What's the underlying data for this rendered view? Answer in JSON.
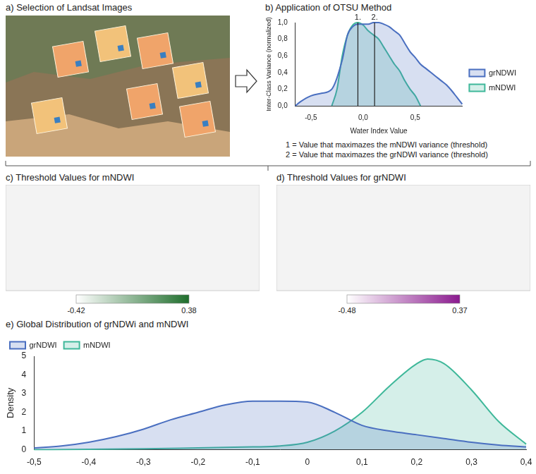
{
  "panels": {
    "a": {
      "title": "a) Selection of Landsat Images"
    },
    "c": {
      "title": "c) Threshold Values for mNDWI",
      "colorbar": {
        "range": [
          -0.42,
          0.38
        ],
        "ticks": [
          -0.42,
          0.38
        ],
        "colors": [
          "#ffffff",
          "#1f6e2c"
        ]
      }
    },
    "d": {
      "title": "d) Threshold Values for grNDWI",
      "colorbar": {
        "range": [
          -0.48,
          0.37
        ],
        "ticks": [
          -0.48,
          0.37
        ],
        "colors": [
          "#ffffff",
          "#8b1a8f"
        ]
      }
    }
  },
  "chart_data": [
    {
      "type": "line",
      "title": "b) Application of OTSU Method",
      "x_label": "Water Index Value",
      "y_label": "Inter-Class Variance (normalized)",
      "xlim": [
        -0.65,
        0.95
      ],
      "xticks": [
        {
          "value": -0.5,
          "label": "-0,5"
        },
        {
          "value": 0,
          "label": "0,0"
        },
        {
          "value": 0.5,
          "label": "0,5"
        }
      ],
      "ylim": [
        0,
        1
      ],
      "yticks": [
        {
          "value": 0,
          "label": "0,0"
        },
        {
          "value": 0.2,
          "label": "0,2"
        },
        {
          "value": 0.4,
          "label": "0,4"
        },
        {
          "value": 0.6,
          "label": "0,6"
        },
        {
          "value": 0.8,
          "label": "0,8"
        },
        {
          "value": 1,
          "label": "1,0"
        }
      ],
      "grid": false,
      "legend": "right",
      "series": [
        {
          "name": "grNDWI",
          "color": "#4a6fc0",
          "x": [
            -0.65,
            -0.6,
            -0.5,
            -0.4,
            -0.3,
            -0.2,
            -0.15,
            -0.1,
            -0.05,
            0,
            0.05,
            0.1,
            0.15,
            0.2,
            0.25,
            0.3,
            0.35,
            0.4,
            0.45,
            0.5,
            0.55,
            0.6,
            0.65,
            0.7,
            0.75,
            0.8,
            0.85,
            0.9,
            0.95
          ],
          "values": [
            0.0,
            0.05,
            0.12,
            0.15,
            0.2,
            0.55,
            0.85,
            0.95,
            0.98,
            0.98,
            0.98,
            1.0,
            1.0,
            0.98,
            0.95,
            0.9,
            0.85,
            0.75,
            0.65,
            0.58,
            0.5,
            0.45,
            0.4,
            0.35,
            0.3,
            0.25,
            0.18,
            0.1,
            0.02
          ]
        },
        {
          "name": "mNDWI",
          "color": "#3fb89a",
          "x": [
            -0.3,
            -0.25,
            -0.2,
            -0.15,
            -0.1,
            -0.05,
            0,
            0.05,
            0.1,
            0.15,
            0.2,
            0.25,
            0.3,
            0.35,
            0.4,
            0.45,
            0.5,
            0.55
          ],
          "values": [
            0.0,
            0.2,
            0.6,
            0.85,
            0.97,
            1.0,
            0.97,
            0.9,
            0.85,
            0.8,
            0.7,
            0.6,
            0.5,
            0.42,
            0.3,
            0.2,
            0.12,
            0.0
          ]
        }
      ],
      "annotations": [
        {
          "x": -0.05,
          "text": "1."
        },
        {
          "x": 0.11,
          "text": "2."
        }
      ],
      "notes": [
        "1 = Value that maximazes the mNDWI variance (threshold)",
        "2 = Value that maximazes the grNDWI variance (threshold)"
      ]
    },
    {
      "type": "line",
      "title": "e) Global Distribution of grNDWi and mNDWI",
      "y_label": "Density",
      "xlim": [
        -0.5,
        0.4
      ],
      "xticks": [
        {
          "value": -0.5,
          "label": "-0,5"
        },
        {
          "value": -0.4,
          "label": "-0,4"
        },
        {
          "value": -0.3,
          "label": "-0,3"
        },
        {
          "value": -0.2,
          "label": "-0,2"
        },
        {
          "value": -0.1,
          "label": "-0,1"
        },
        0,
        {
          "value": 0.1,
          "label": "0,1"
        },
        {
          "value": 0.2,
          "label": "0,2"
        },
        {
          "value": 0.3,
          "label": "0,3"
        },
        {
          "value": 0.4,
          "label": "0,4"
        }
      ],
      "ylim": [
        0,
        5
      ],
      "yticks": [
        0,
        1,
        2,
        3,
        4,
        5
      ],
      "grid": false,
      "legend": "top-left",
      "series": [
        {
          "name": "grNDWI",
          "color": "#4a6fc0",
          "x": [
            -0.5,
            -0.45,
            -0.4,
            -0.35,
            -0.3,
            -0.25,
            -0.2,
            -0.15,
            -0.1,
            -0.05,
            0,
            0.05,
            0.1,
            0.15,
            0.2,
            0.25,
            0.3,
            0.35,
            0.4
          ],
          "values": [
            0.1,
            0.2,
            0.4,
            0.7,
            1.1,
            1.6,
            2.0,
            2.4,
            2.6,
            2.6,
            2.55,
            2.0,
            1.3,
            1.0,
            0.8,
            0.6,
            0.4,
            0.25,
            0.15
          ]
        },
        {
          "name": "mNDWI",
          "color": "#3fb89a",
          "x": [
            -0.5,
            -0.4,
            -0.3,
            -0.2,
            -0.1,
            -0.05,
            0,
            0.05,
            0.1,
            0.15,
            0.2,
            0.22,
            0.25,
            0.3,
            0.35,
            0.4
          ],
          "values": [
            0.0,
            0.02,
            0.05,
            0.1,
            0.15,
            0.2,
            0.4,
            1.0,
            2.0,
            3.4,
            4.6,
            4.85,
            4.6,
            3.2,
            1.5,
            0.3
          ]
        }
      ]
    }
  ]
}
